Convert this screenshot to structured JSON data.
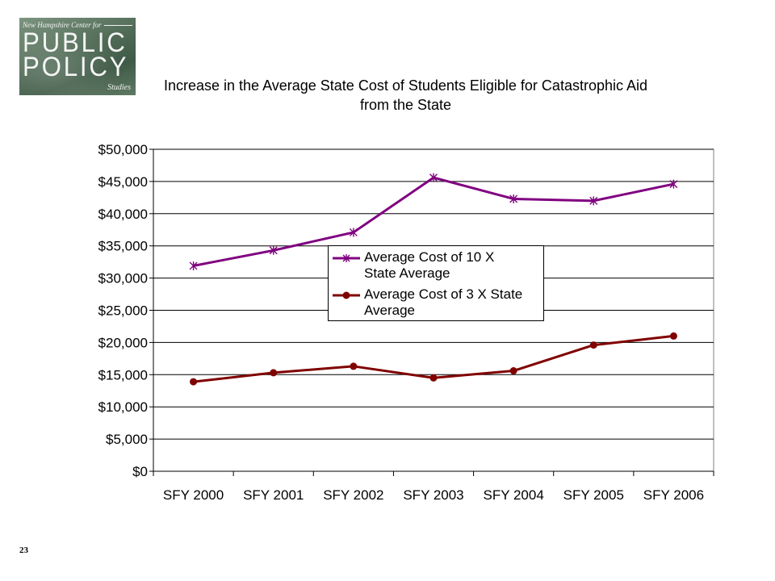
{
  "logo": {
    "tagline": "New Hampshire Center for",
    "line1": "PUBLIC",
    "line2": "POLICY",
    "studies": "Studies"
  },
  "page_number": "23",
  "chart_data": {
    "type": "line",
    "title": "Increase in the Average State Cost of Students Eligible for Catastrophic Aid from the State",
    "title_lines": [
      "Increase in the Average State Cost of Students Eligible for Catastrophic Aid",
      "from the State"
    ],
    "categories": [
      "SFY 2000",
      "SFY 2001",
      "SFY 2002",
      "SFY 2003",
      "SFY 2004",
      "SFY 2005",
      "SFY 2006"
    ],
    "ylim": [
      0,
      50000
    ],
    "yticks": [
      0,
      5000,
      10000,
      15000,
      20000,
      25000,
      30000,
      35000,
      40000,
      45000,
      50000
    ],
    "ytick_labels": [
      "$0",
      "$5,000",
      "$10,000",
      "$15,000",
      "$20,000",
      "$25,000",
      "$30,000",
      "$35,000",
      "$40,000",
      "$45,000",
      "$50,000"
    ],
    "grid": true,
    "legend_position": "center",
    "series": [
      {
        "name": "Average Cost of 10 X State Average",
        "legend_lines": [
          "Average Cost of 10 X",
          "State Average"
        ],
        "color": "#800080",
        "marker": "star",
        "values": [
          31900,
          34300,
          37100,
          45600,
          42300,
          42000,
          44600
        ]
      },
      {
        "name": "Average Cost of 3 X State Average",
        "legend_lines": [
          "Average Cost of 3 X State",
          "Average"
        ],
        "color": "#800000",
        "marker": "circle",
        "values": [
          13900,
          15300,
          16300,
          14500,
          15600,
          19600,
          21000
        ]
      }
    ]
  }
}
